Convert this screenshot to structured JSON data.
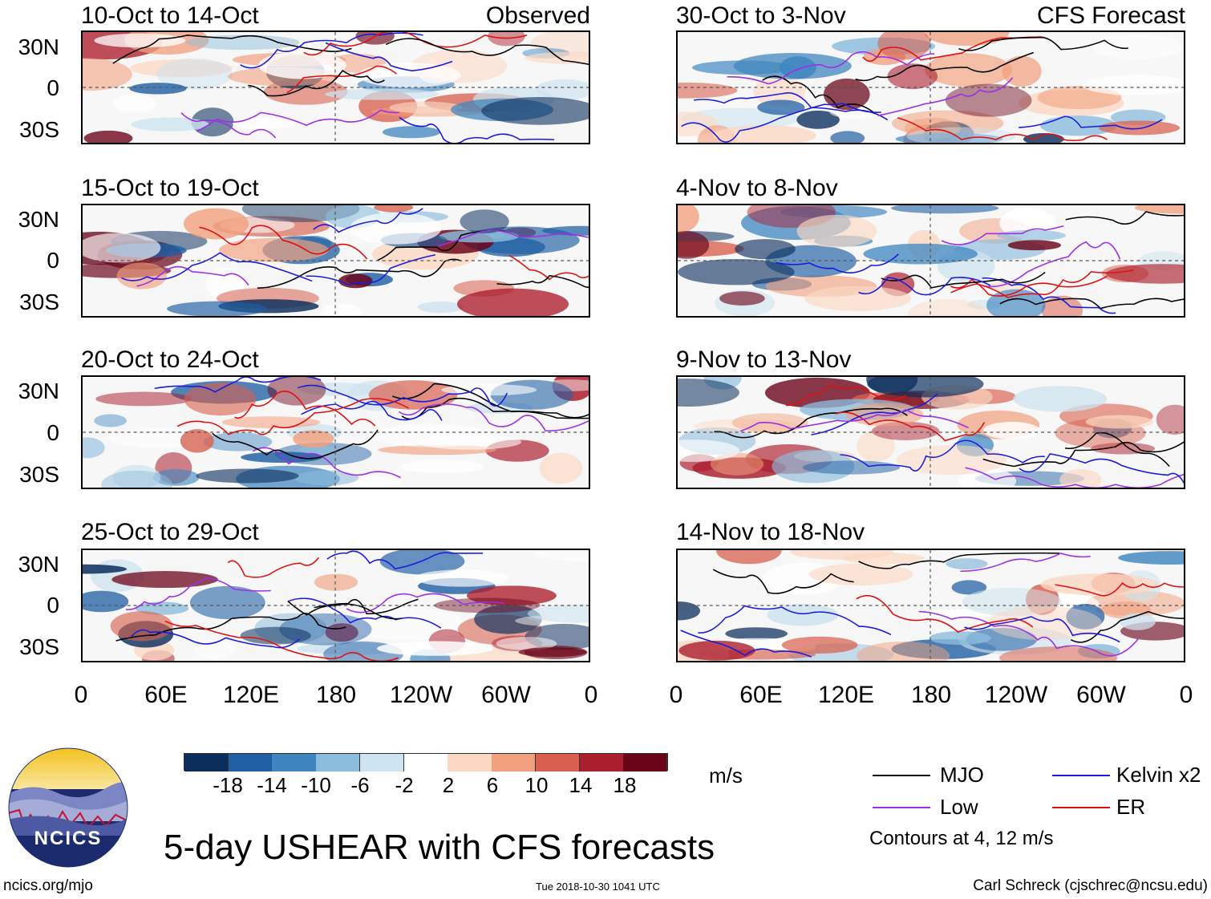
{
  "panels_left": [
    {
      "title": "10-Oct to 14-Oct",
      "tag": "Observed"
    },
    {
      "title": "15-Oct to 19-Oct",
      "tag": ""
    },
    {
      "title": "20-Oct to 24-Oct",
      "tag": ""
    },
    {
      "title": "25-Oct to 29-Oct",
      "tag": ""
    }
  ],
  "panels_right": [
    {
      "title": "30-Oct to 3-Nov",
      "tag": "CFS Forecast"
    },
    {
      "title": "4-Nov to 8-Nov",
      "tag": ""
    },
    {
      "title": "9-Nov to 13-Nov",
      "tag": ""
    },
    {
      "title": "14-Nov to 18-Nov",
      "tag": ""
    }
  ],
  "lat_labels": [
    "30N",
    "0",
    "30S"
  ],
  "lon_labels": [
    "0",
    "60E",
    "120E",
    "180",
    "120W",
    "60W",
    "0"
  ],
  "colorbar": {
    "unit": "m/s",
    "ticks": [
      "-18",
      "-14",
      "-10",
      "-6",
      "-2",
      "2",
      "6",
      "10",
      "14",
      "18"
    ],
    "colors": [
      "#0b2e5c",
      "#1f5fa3",
      "#3f86c0",
      "#8cbcdc",
      "#cde3ef",
      "#ffffff",
      "#fbd8c3",
      "#f1a07e",
      "#d8604e",
      "#ab1e2e",
      "#6a0318"
    ]
  },
  "legend": {
    "items": [
      {
        "label": "MJO",
        "color": "#000000"
      },
      {
        "label": "Kelvin x2",
        "color": "#1a1ae0"
      },
      {
        "label": "Low",
        "color": "#9b30e8"
      },
      {
        "label": "ER",
        "color": "#e01010"
      }
    ],
    "note": "Contours at 4, 12 m/s"
  },
  "logo": {
    "text": "NCICS"
  },
  "footer": {
    "title": "5-day USHEAR with CFS forecasts",
    "url": "ncics.org/mjo",
    "timestamp": "Tue 2018-10-30 1041 UTC",
    "credit": "Carl Schreck (cjschrec@ncsu.edu)"
  }
}
